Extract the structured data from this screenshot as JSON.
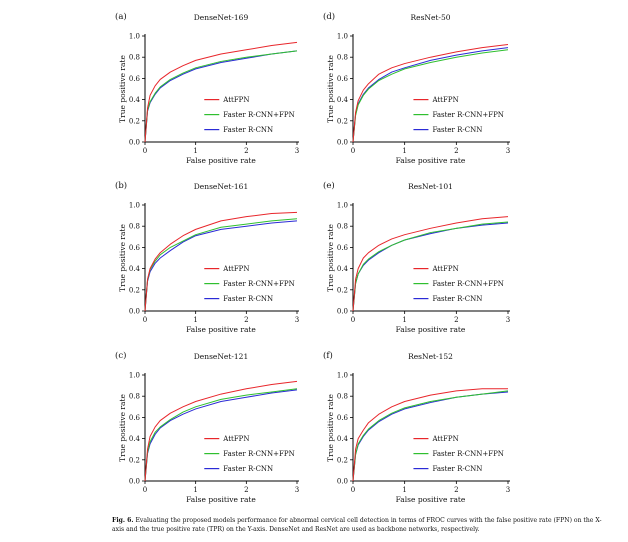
{
  "caption": {
    "label": "Fig. 6.",
    "text": "Evaluating the proposed models performance for abnormal cervical cell detection in terms of FROC curves with the false positive rate (FPN) on the X-axis and the true positive rate (TPR) on the Y-axis. DenseNet and ResNet are used as backbone networks, respectively."
  },
  "colors": {
    "AttFPN": "#e8262b",
    "Faster R-CNN+FPN": "#2fbf2f",
    "Faster R-CNN": "#2b2bd6",
    "axis": "#000000"
  },
  "chart_data": [
    {
      "panel": "(a)",
      "type": "line",
      "title": "DenseNet-169",
      "xlabel": "False positive rate",
      "ylabel": "True positive rate",
      "xlim": [
        0,
        3
      ],
      "ylim": [
        0,
        1.0
      ],
      "xticks": [
        "0",
        "1",
        "2",
        "3"
      ],
      "yticks": [
        "0.0",
        "0.2",
        "0.4",
        "0.6",
        "0.8",
        "1.0"
      ],
      "x": [
        0,
        0.05,
        0.1,
        0.2,
        0.3,
        0.5,
        0.75,
        1.0,
        1.5,
        2.0,
        2.5,
        3.0
      ],
      "series": [
        {
          "name": "AttFPN",
          "values": [
            0.0,
            0.32,
            0.44,
            0.53,
            0.59,
            0.66,
            0.72,
            0.77,
            0.83,
            0.87,
            0.91,
            0.94
          ]
        },
        {
          "name": "Faster R-CNN+FPN",
          "values": [
            0.0,
            0.3,
            0.38,
            0.46,
            0.52,
            0.59,
            0.65,
            0.7,
            0.76,
            0.8,
            0.83,
            0.86
          ]
        },
        {
          "name": "Faster R-CNN",
          "values": [
            0.0,
            0.29,
            0.37,
            0.45,
            0.51,
            0.58,
            0.64,
            0.69,
            0.75,
            0.79,
            0.83,
            0.86
          ]
        }
      ]
    },
    {
      "panel": "(d)",
      "type": "line",
      "title": "ResNet-50",
      "xlabel": "False positive rate",
      "ylabel": "True positive rate",
      "xlim": [
        0,
        3
      ],
      "ylim": [
        0,
        1.0
      ],
      "xticks": [
        "0",
        "1",
        "2",
        "3"
      ],
      "yticks": [
        "0.0",
        "0.2",
        "0.4",
        "0.6",
        "0.8",
        "1.0"
      ],
      "x": [
        0,
        0.05,
        0.1,
        0.2,
        0.3,
        0.5,
        0.75,
        1.0,
        1.5,
        2.0,
        2.5,
        3.0
      ],
      "series": [
        {
          "name": "AttFPN",
          "values": [
            0.0,
            0.28,
            0.39,
            0.49,
            0.55,
            0.64,
            0.7,
            0.74,
            0.8,
            0.85,
            0.89,
            0.92
          ]
        },
        {
          "name": "Faster R-CNN+FPN",
          "values": [
            0.0,
            0.25,
            0.35,
            0.44,
            0.5,
            0.58,
            0.64,
            0.69,
            0.75,
            0.8,
            0.84,
            0.87
          ]
        },
        {
          "name": "Faster R-CNN",
          "values": [
            0.0,
            0.26,
            0.36,
            0.45,
            0.51,
            0.59,
            0.66,
            0.7,
            0.77,
            0.82,
            0.86,
            0.89
          ]
        }
      ]
    },
    {
      "panel": "(b)",
      "type": "line",
      "title": "DenseNet-161",
      "xlabel": "False positive rate",
      "ylabel": "True positive rate",
      "xlim": [
        0,
        3
      ],
      "ylim": [
        0,
        1.0
      ],
      "xticks": [
        "0",
        "1",
        "2",
        "3"
      ],
      "yticks": [
        "0.0",
        "0.2",
        "0.4",
        "0.6",
        "0.8",
        "1.0"
      ],
      "x": [
        0,
        0.05,
        0.1,
        0.2,
        0.3,
        0.5,
        0.75,
        1.0,
        1.5,
        2.0,
        2.5,
        3.0
      ],
      "series": [
        {
          "name": "AttFPN",
          "values": [
            0.0,
            0.3,
            0.4,
            0.49,
            0.55,
            0.63,
            0.71,
            0.77,
            0.85,
            0.89,
            0.92,
            0.93
          ]
        },
        {
          "name": "Faster R-CNN+FPN",
          "values": [
            0.0,
            0.29,
            0.39,
            0.47,
            0.53,
            0.6,
            0.66,
            0.72,
            0.79,
            0.82,
            0.85,
            0.87
          ]
        },
        {
          "name": "Faster R-CNN",
          "values": [
            0.0,
            0.28,
            0.37,
            0.45,
            0.5,
            0.57,
            0.65,
            0.71,
            0.77,
            0.8,
            0.83,
            0.85
          ]
        }
      ]
    },
    {
      "panel": "(e)",
      "type": "line",
      "title": "ResNet-101",
      "xlabel": "False positive rate",
      "ylabel": "True positive rate",
      "xlim": [
        0,
        3
      ],
      "ylim": [
        0,
        1.0
      ],
      "xticks": [
        "0",
        "1",
        "2",
        "3"
      ],
      "yticks": [
        "0.0",
        "0.2",
        "0.4",
        "0.6",
        "0.8",
        "1.0"
      ],
      "x": [
        0,
        0.05,
        0.1,
        0.2,
        0.3,
        0.5,
        0.75,
        1.0,
        1.5,
        2.0,
        2.5,
        3.0
      ],
      "series": [
        {
          "name": "AttFPN",
          "values": [
            0.0,
            0.3,
            0.4,
            0.5,
            0.55,
            0.62,
            0.68,
            0.72,
            0.78,
            0.83,
            0.87,
            0.89
          ]
        },
        {
          "name": "Faster R-CNN+FPN",
          "values": [
            0.0,
            0.26,
            0.35,
            0.44,
            0.49,
            0.56,
            0.62,
            0.67,
            0.74,
            0.78,
            0.82,
            0.84
          ]
        },
        {
          "name": "Faster R-CNN",
          "values": [
            0.0,
            0.26,
            0.35,
            0.43,
            0.48,
            0.55,
            0.62,
            0.67,
            0.73,
            0.78,
            0.81,
            0.83
          ]
        }
      ]
    },
    {
      "panel": "(c)",
      "type": "line",
      "title": "DenseNet-121",
      "xlabel": "False positive rate",
      "ylabel": "True positive rate",
      "xlim": [
        0,
        3
      ],
      "ylim": [
        0,
        1.0
      ],
      "xticks": [
        "0",
        "1",
        "2",
        "3"
      ],
      "yticks": [
        "0.0",
        "0.2",
        "0.4",
        "0.6",
        "0.8",
        "1.0"
      ],
      "x": [
        0,
        0.05,
        0.1,
        0.2,
        0.3,
        0.5,
        0.75,
        1.0,
        1.5,
        2.0,
        2.5,
        3.0
      ],
      "series": [
        {
          "name": "AttFPN",
          "values": [
            0.0,
            0.3,
            0.42,
            0.51,
            0.57,
            0.64,
            0.7,
            0.75,
            0.82,
            0.87,
            0.91,
            0.94
          ]
        },
        {
          "name": "Faster R-CNN+FPN",
          "values": [
            0.0,
            0.27,
            0.37,
            0.46,
            0.51,
            0.58,
            0.65,
            0.7,
            0.77,
            0.81,
            0.84,
            0.87
          ]
        },
        {
          "name": "Faster R-CNN",
          "values": [
            0.0,
            0.26,
            0.35,
            0.44,
            0.5,
            0.57,
            0.63,
            0.68,
            0.75,
            0.79,
            0.83,
            0.86
          ]
        }
      ]
    },
    {
      "panel": "(f)",
      "type": "line",
      "title": "ResNet-152",
      "xlabel": "False positive rate",
      "ylabel": "True positive rate",
      "xlim": [
        0,
        3
      ],
      "ylim": [
        0,
        1.0
      ],
      "xticks": [
        "0",
        "1",
        "2",
        "3"
      ],
      "yticks": [
        "0.0",
        "0.2",
        "0.4",
        "0.6",
        "0.8",
        "1.0"
      ],
      "x": [
        0,
        0.05,
        0.1,
        0.2,
        0.3,
        0.5,
        0.75,
        1.0,
        1.5,
        2.0,
        2.5,
        3.0
      ],
      "series": [
        {
          "name": "AttFPN",
          "values": [
            0.0,
            0.3,
            0.4,
            0.48,
            0.55,
            0.63,
            0.7,
            0.75,
            0.81,
            0.85,
            0.87,
            0.87
          ]
        },
        {
          "name": "Faster R-CNN+FPN",
          "values": [
            0.0,
            0.25,
            0.35,
            0.43,
            0.49,
            0.57,
            0.64,
            0.69,
            0.75,
            0.79,
            0.82,
            0.85
          ]
        },
        {
          "name": "Faster R-CNN",
          "values": [
            0.0,
            0.25,
            0.34,
            0.42,
            0.48,
            0.56,
            0.63,
            0.68,
            0.74,
            0.79,
            0.82,
            0.84
          ]
        }
      ]
    }
  ]
}
